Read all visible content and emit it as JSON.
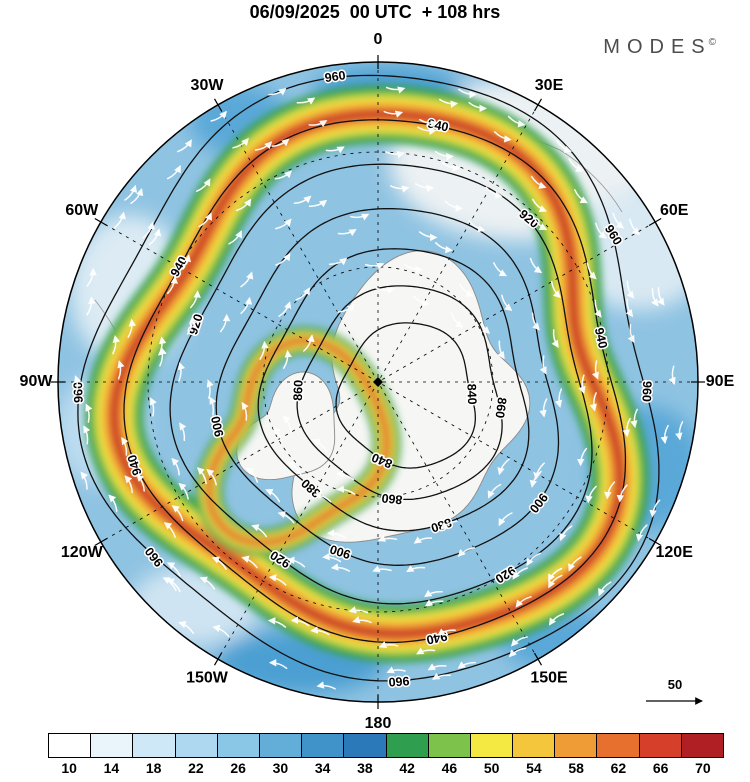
{
  "title": "06/09/2025  00 UTC  + 108 hrs",
  "brand": {
    "name": "MODES",
    "copyright": "©"
  },
  "chart_data": {
    "type": "heatmap",
    "projection": "south-polar-stereographic",
    "description": "Forecast wind speed (shaded), geopotential height contours and wind direction arrows",
    "forecast": {
      "run_date": "06/09/2025",
      "run_time": "00 UTC",
      "lead": "+ 108 hrs"
    },
    "meridians": [
      {
        "label": "0",
        "angle": 0
      },
      {
        "label": "30E",
        "angle": 30
      },
      {
        "label": "60E",
        "angle": 60
      },
      {
        "label": "90E",
        "angle": 90
      },
      {
        "label": "120E",
        "angle": 120
      },
      {
        "label": "150E",
        "angle": 150
      },
      {
        "label": "180",
        "angle": 180
      },
      {
        "label": "150W",
        "angle": 210
      },
      {
        "label": "120W",
        "angle": 240
      },
      {
        "label": "90W",
        "angle": 270
      },
      {
        "label": "60W",
        "angle": 300
      },
      {
        "label": "30W",
        "angle": 330
      }
    ],
    "contour_levels": [
      840,
      860,
      880,
      900,
      920,
      940,
      960
    ],
    "contour_labels": [
      {
        "value": "960",
        "angle": 352
      },
      {
        "value": "960",
        "angle": 58
      },
      {
        "value": "960",
        "angle": 92
      },
      {
        "value": "960",
        "angle": 176
      },
      {
        "value": "960",
        "angle": 232
      },
      {
        "value": "960",
        "angle": 268
      },
      {
        "value": "940",
        "angle": 12
      },
      {
        "value": "940",
        "angle": 78
      },
      {
        "value": "940",
        "angle": 168
      },
      {
        "value": "940",
        "angle": 252
      },
      {
        "value": "940",
        "angle": 300
      },
      {
        "value": "920",
        "angle": 40
      },
      {
        "value": "920",
        "angle": 148
      },
      {
        "value": "920",
        "angle": 212
      },
      {
        "value": "920",
        "angle": 288
      },
      {
        "value": "900",
        "angle": 128
      },
      {
        "value": "900",
        "angle": 198
      },
      {
        "value": "900",
        "angle": 258
      },
      {
        "value": "880",
        "angle": 162
      },
      {
        "value": "880",
        "angle": 222
      },
      {
        "value": "860",
        "angle": 98
      },
      {
        "value": "860",
        "angle": 186
      },
      {
        "value": "860",
        "angle": 272
      },
      {
        "value": "840",
        "angle": 88
      },
      {
        "value": "840",
        "angle": 202
      }
    ],
    "colorbar": {
      "tick_labels": [
        "10",
        "14",
        "18",
        "22",
        "26",
        "30",
        "34",
        "38",
        "42",
        "46",
        "50",
        "54",
        "58",
        "62",
        "66",
        "70"
      ],
      "colors": [
        "#ffffff",
        "#eaf5fb",
        "#cfe8f7",
        "#aed8f0",
        "#8ac6e6",
        "#62aed9",
        "#3f93c9",
        "#2b79b8",
        "#2f9e4f",
        "#7dc24b",
        "#f4e843",
        "#f3c63b",
        "#ef9b36",
        "#e8702e",
        "#d6402a",
        "#b01f24"
      ]
    },
    "wind_reference_label": "50",
    "arrow_color": "#ffffff",
    "contour_color": "#111111"
  }
}
